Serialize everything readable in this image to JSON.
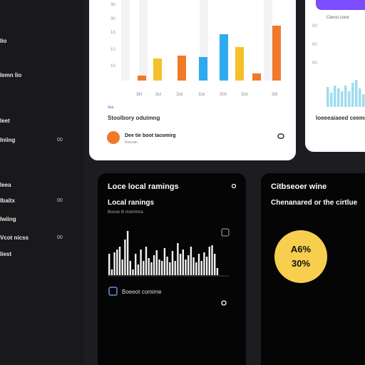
{
  "sidebar": {
    "items": [
      {
        "label": "Iio"
      },
      {
        "label": "Iemn Iio"
      },
      {
        "label": "Ieet"
      },
      {
        "label": "Iniing",
        "value": "00"
      },
      {
        "label": "Ieea"
      },
      {
        "label": "Ibaitx",
        "value": "00"
      },
      {
        "label": "Iwiing"
      },
      {
        "label": "Vcot nicss",
        "value": "00"
      },
      {
        "label": "Iiest"
      }
    ]
  },
  "top_card": {
    "y_labels": [
      "3b",
      "30",
      "1b",
      "10",
      "10"
    ],
    "x_labels": [
      "3bl",
      "3oI",
      "Dol",
      "Doi",
      "300",
      "Dol",
      "3dl"
    ],
    "chart": {
      "values": [
        7,
        31,
        35,
        33,
        65,
        47,
        10,
        77
      ],
      "colors": [
        "#f07a2a",
        "#f5c02b",
        "#f07a2a",
        "#2eaaf0",
        "#2eaaf0",
        "#f5c02b",
        "#f07a2a",
        "#f07a2a"
      ]
    },
    "link": "Iea",
    "caption": "Stoolbory oduimng",
    "footer_title": "Dee tie boot tacomirg",
    "footer_sub": "Foccom"
  },
  "right_card": {
    "button_text": "Cienst cone",
    "y_labels": [
      "00",
      "00",
      "00"
    ],
    "chart": {
      "values": [
        28,
        20,
        30,
        26,
        22,
        30,
        22,
        34,
        38,
        26,
        18,
        40,
        30,
        24
      ]
    },
    "caption": "Ioeeeaiaeed ceemmee"
  },
  "rankings_card": {
    "title": "Loce local ramings",
    "subtitle": "Local ranings",
    "note": "Bocue lit monmma",
    "chart": {
      "values": [
        30,
        8,
        32,
        36,
        40,
        22,
        50,
        62,
        20,
        8,
        30,
        15,
        36,
        20,
        40,
        24,
        18,
        28,
        35,
        22,
        20,
        38,
        26,
        18,
        34,
        20,
        45,
        30,
        36,
        22,
        28,
        40,
        25,
        18,
        30,
        20,
        32,
        26,
        40,
        42,
        30,
        10
      ]
    },
    "checkbox_label": "Boeeot comime"
  },
  "stats_card": {
    "title": "Citbseoer wine",
    "subtitle": "Chenanared or the cirtlue",
    "value_1": "A6%",
    "value_2": "30%"
  }
}
